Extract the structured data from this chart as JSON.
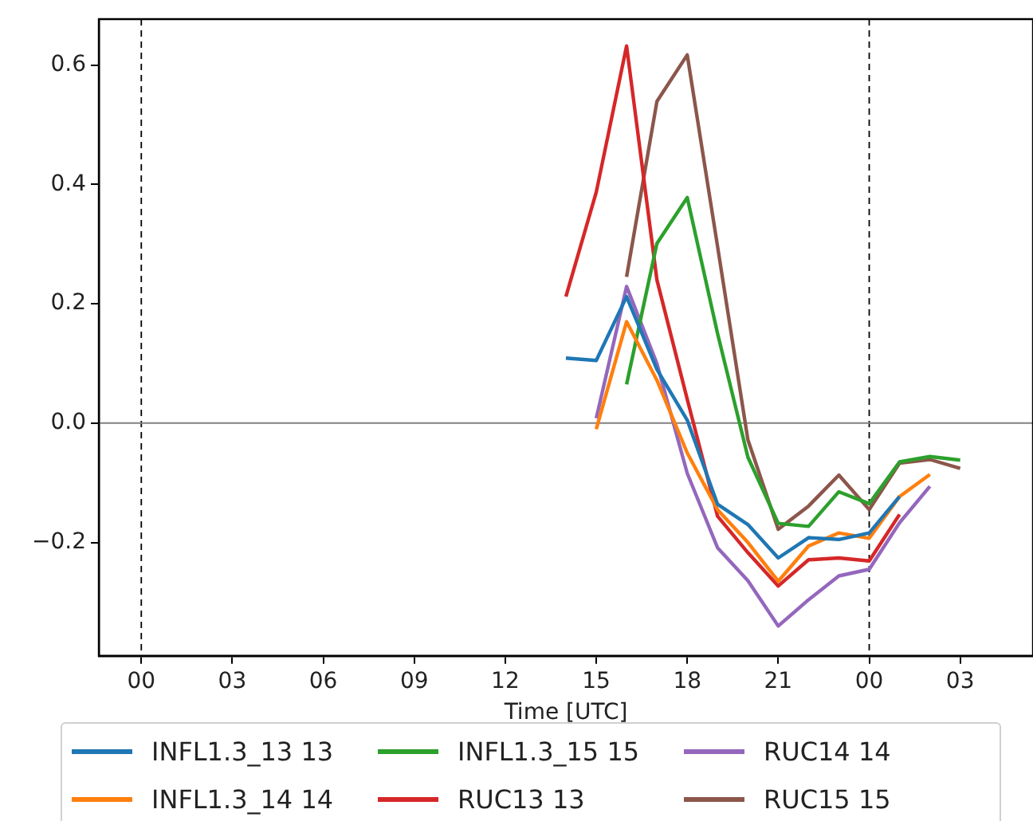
{
  "chart_data": {
    "type": "line",
    "xlabel": "Time [UTC]",
    "legend": "bottom",
    "grid": false,
    "marker": "none",
    "line_style": "solid",
    "xlim": [
      -1.4,
      29.4
    ],
    "ylim": [
      -0.39,
      0.677
    ],
    "xticks": [
      {
        "value": 0,
        "label": "00"
      },
      {
        "value": 3,
        "label": "03"
      },
      {
        "value": 6,
        "label": "06"
      },
      {
        "value": 9,
        "label": "09"
      },
      {
        "value": 12,
        "label": "12"
      },
      {
        "value": 15,
        "label": "15"
      },
      {
        "value": 18,
        "label": "18"
      },
      {
        "value": 21,
        "label": "21"
      },
      {
        "value": 24,
        "label": "00"
      },
      {
        "value": 27,
        "label": "03"
      }
    ],
    "yticks": [
      {
        "value": -0.2,
        "label": "−0.2"
      },
      {
        "value": 0,
        "label": "0.0"
      },
      0.2,
      0.4,
      0.6
    ],
    "ref_lines": [
      {
        "axis": "x",
        "value": 0,
        "color": "#000000",
        "line_style": "dashed"
      },
      {
        "axis": "x",
        "value": 24,
        "color": "#000000",
        "line_style": "dashed"
      },
      {
        "axis": "y",
        "value": 0,
        "color": "#808080",
        "line_style": "solid"
      }
    ],
    "series": [
      {
        "name": "INFL1.3_13 13",
        "color": "#1f77b4",
        "x": [
          14,
          15,
          16,
          17,
          18,
          19,
          20,
          21,
          22,
          23,
          24,
          25
        ],
        "values": [
          0.109,
          0.105,
          0.212,
          0.09,
          0.005,
          -0.136,
          -0.17,
          -0.226,
          -0.192,
          -0.195,
          -0.184,
          -0.123
        ]
      },
      {
        "name": "INFL1.3_14 14",
        "color": "#ff7f0e",
        "x": [
          15,
          16,
          17,
          18,
          19,
          20,
          21,
          22,
          23,
          24,
          25,
          26
        ],
        "values": [
          -0.01,
          0.17,
          0.072,
          -0.05,
          -0.145,
          -0.2,
          -0.265,
          -0.206,
          -0.184,
          -0.193,
          -0.123,
          -0.086
        ]
      },
      {
        "name": "INFL1.3_15 15",
        "color": "#2ca02c",
        "x": [
          16,
          17,
          18,
          19,
          20,
          21,
          22,
          23,
          24,
          25,
          26,
          27
        ],
        "values": [
          0.065,
          0.301,
          0.378,
          0.15,
          -0.057,
          -0.168,
          -0.173,
          -0.115,
          -0.135,
          -0.065,
          -0.056,
          -0.062
        ]
      },
      {
        "name": "RUC13 13",
        "color": "#d62728",
        "x": [
          14,
          15,
          16,
          17,
          18,
          19,
          20,
          21,
          22,
          23,
          24,
          25
        ],
        "values": [
          0.212,
          0.387,
          0.632,
          0.24,
          0.04,
          -0.156,
          -0.217,
          -0.273,
          -0.229,
          -0.226,
          -0.231,
          -0.153
        ]
      },
      {
        "name": "RUC14 14",
        "color": "#9467bd",
        "x": [
          15,
          16,
          17,
          18,
          19,
          20,
          21,
          22,
          23,
          24,
          25,
          26
        ],
        "values": [
          0.008,
          0.229,
          0.1,
          -0.084,
          -0.209,
          -0.264,
          -0.34,
          -0.296,
          -0.256,
          -0.245,
          -0.167,
          -0.106
        ]
      },
      {
        "name": "RUC15 15",
        "color": "#8c564b",
        "x": [
          16,
          17,
          18,
          19,
          20,
          21,
          22,
          23,
          24,
          25,
          26,
          27
        ],
        "values": [
          0.245,
          0.539,
          0.617,
          0.296,
          -0.028,
          -0.178,
          -0.139,
          -0.087,
          -0.145,
          -0.067,
          -0.061,
          -0.076
        ]
      }
    ]
  }
}
